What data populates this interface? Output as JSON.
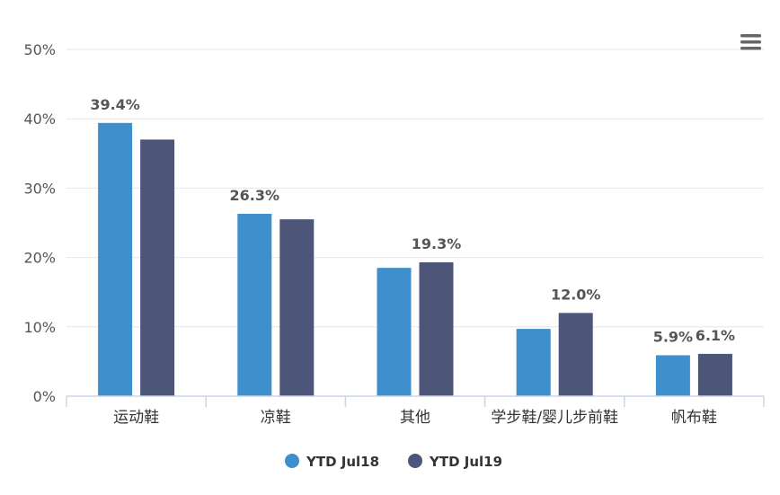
{
  "chart_data": {
    "type": "bar",
    "categories": [
      "运动鞋",
      "凉鞋",
      "其他",
      "学步鞋/婴儿步前鞋",
      "帆布鞋"
    ],
    "series": [
      {
        "name": "YTD Jul18",
        "color": "#3e8fcb",
        "values": [
          39.4,
          26.3,
          18.5,
          9.7,
          5.9
        ]
      },
      {
        "name": "YTD Jul19",
        "color": "#4d5579",
        "values": [
          37.0,
          25.5,
          19.3,
          12.0,
          6.1
        ]
      }
    ],
    "data_labels": [
      {
        "category": "运动鞋",
        "series": "YTD Jul18",
        "text": "39.4%"
      },
      {
        "category": "凉鞋",
        "series": "YTD Jul18",
        "text": "26.3%"
      },
      {
        "category": "其他",
        "series": "YTD Jul19",
        "text": "19.3%"
      },
      {
        "category": "学步鞋/婴儿步前鞋",
        "series": "YTD Jul19",
        "text": "12.0%"
      },
      {
        "category": "帆布鞋",
        "series": "YTD Jul18",
        "text": "5.9%"
      },
      {
        "category": "帆布鞋",
        "series": "YTD Jul19",
        "text": "6.1%"
      }
    ],
    "y_ticks": [
      "0%",
      "10%",
      "20%",
      "30%",
      "40%",
      "50%"
    ],
    "ylim": [
      0,
      50
    ],
    "grid": true,
    "legend_position": "bottom-center",
    "title": "",
    "xlabel": "",
    "ylabel": ""
  },
  "ui": {
    "menu_icon": "hamburger-menu-icon",
    "grid_color": "#e6e6e6",
    "axis_color": "#ccd6eb"
  }
}
